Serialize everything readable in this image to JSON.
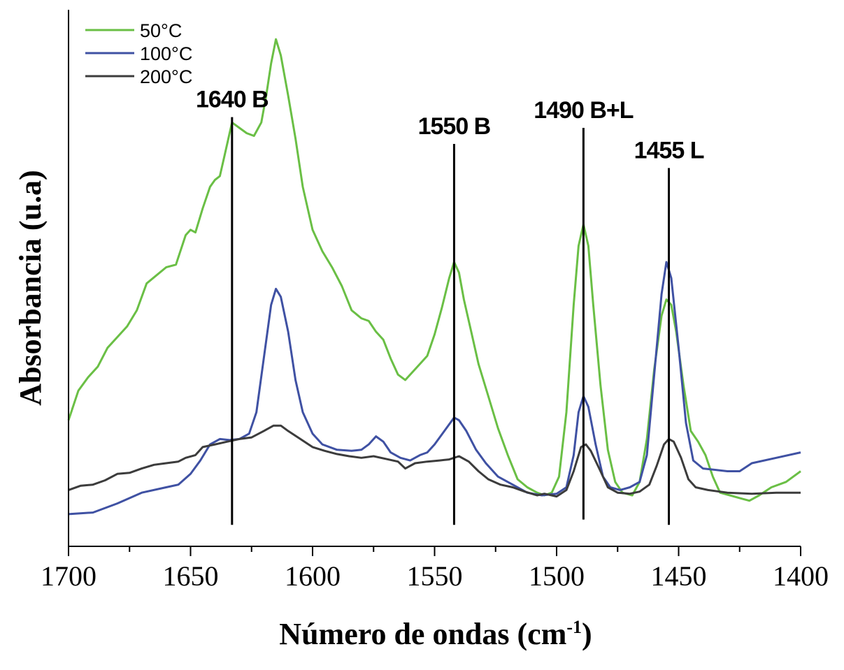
{
  "chart_data": {
    "type": "line",
    "xlabel": "Número de ondas (cm",
    "xlabel_sup": "-1",
    "xlabel_end": ")",
    "ylabel": "Absorbancia (u.a)",
    "xlim": [
      1700,
      1400
    ],
    "ylim": [
      0,
      1
    ],
    "x_ticks": [
      1700,
      1650,
      1600,
      1550,
      1500,
      1450,
      1400
    ],
    "x_tick_labels": [
      "1700",
      "1650",
      "1600",
      "1550",
      "1500",
      "1450",
      "1400"
    ],
    "y_ticks_shown": false,
    "grid": false,
    "legend_position": "top-left",
    "series": [
      {
        "name": "50°C",
        "color": "#6abf45",
        "points": [
          [
            1700,
            0.235
          ],
          [
            1696,
            0.29
          ],
          [
            1692,
            0.315
          ],
          [
            1688,
            0.335
          ],
          [
            1684,
            0.37
          ],
          [
            1680,
            0.39
          ],
          [
            1676,
            0.41
          ],
          [
            1672,
            0.44
          ],
          [
            1668,
            0.49
          ],
          [
            1664,
            0.505
          ],
          [
            1660,
            0.52
          ],
          [
            1656,
            0.525
          ],
          [
            1652,
            0.58
          ],
          [
            1650,
            0.59
          ],
          [
            1648,
            0.585
          ],
          [
            1645,
            0.63
          ],
          [
            1642,
            0.67
          ],
          [
            1640,
            0.683
          ],
          [
            1638,
            0.69
          ],
          [
            1636,
            0.73
          ],
          [
            1633,
            0.79
          ],
          [
            1630,
            0.78
          ],
          [
            1627,
            0.77
          ],
          [
            1624,
            0.765
          ],
          [
            1621,
            0.79
          ],
          [
            1619,
            0.84
          ],
          [
            1617,
            0.9
          ],
          [
            1615,
            0.945
          ],
          [
            1613,
            0.915
          ],
          [
            1610,
            0.84
          ],
          [
            1607,
            0.76
          ],
          [
            1604,
            0.67
          ],
          [
            1600,
            0.59
          ],
          [
            1596,
            0.55
          ],
          [
            1592,
            0.52
          ],
          [
            1588,
            0.485
          ],
          [
            1584,
            0.44
          ],
          [
            1580,
            0.425
          ],
          [
            1577,
            0.42
          ],
          [
            1574,
            0.4
          ],
          [
            1571,
            0.385
          ],
          [
            1568,
            0.35
          ],
          [
            1565,
            0.32
          ],
          [
            1562,
            0.31
          ],
          [
            1559,
            0.325
          ],
          [
            1556,
            0.34
          ],
          [
            1553,
            0.355
          ],
          [
            1550,
            0.395
          ],
          [
            1547,
            0.445
          ],
          [
            1544,
            0.5
          ],
          [
            1542,
            0.53
          ],
          [
            1540,
            0.51
          ],
          [
            1538,
            0.46
          ],
          [
            1535,
            0.4
          ],
          [
            1532,
            0.34
          ],
          [
            1528,
            0.28
          ],
          [
            1524,
            0.22
          ],
          [
            1520,
            0.17
          ],
          [
            1516,
            0.125
          ],
          [
            1512,
            0.11
          ],
          [
            1508,
            0.1
          ],
          [
            1505,
            0.095
          ],
          [
            1502,
            0.1
          ],
          [
            1499,
            0.13
          ],
          [
            1496,
            0.25
          ],
          [
            1493,
            0.45
          ],
          [
            1491,
            0.56
          ],
          [
            1489,
            0.6
          ],
          [
            1487,
            0.56
          ],
          [
            1485,
            0.45
          ],
          [
            1482,
            0.3
          ],
          [
            1479,
            0.18
          ],
          [
            1476,
            0.12
          ],
          [
            1473,
            0.1
          ],
          [
            1469,
            0.095
          ],
          [
            1466,
            0.12
          ],
          [
            1463,
            0.2
          ],
          [
            1460,
            0.33
          ],
          [
            1457,
            0.43
          ],
          [
            1455,
            0.46
          ],
          [
            1453,
            0.45
          ],
          [
            1451,
            0.4
          ],
          [
            1448,
            0.3
          ],
          [
            1445,
            0.215
          ],
          [
            1442,
            0.195
          ],
          [
            1439,
            0.17
          ],
          [
            1436,
            0.13
          ],
          [
            1433,
            0.1
          ],
          [
            1429,
            0.095
          ],
          [
            1425,
            0.09
          ],
          [
            1421,
            0.085
          ],
          [
            1417,
            0.095
          ],
          [
            1412,
            0.11
          ],
          [
            1406,
            0.12
          ],
          [
            1400,
            0.14
          ]
        ]
      },
      {
        "name": "100°C",
        "color": "#3f51a3",
        "points": [
          [
            1700,
            0.06
          ],
          [
            1690,
            0.063
          ],
          [
            1680,
            0.08
          ],
          [
            1670,
            0.1
          ],
          [
            1660,
            0.11
          ],
          [
            1655,
            0.115
          ],
          [
            1650,
            0.135
          ],
          [
            1646,
            0.16
          ],
          [
            1642,
            0.19
          ],
          [
            1638,
            0.2
          ],
          [
            1634,
            0.198
          ],
          [
            1630,
            0.2
          ],
          [
            1626,
            0.21
          ],
          [
            1623,
            0.25
          ],
          [
            1620,
            0.35
          ],
          [
            1617,
            0.45
          ],
          [
            1615,
            0.48
          ],
          [
            1613,
            0.465
          ],
          [
            1610,
            0.4
          ],
          [
            1607,
            0.31
          ],
          [
            1604,
            0.25
          ],
          [
            1600,
            0.21
          ],
          [
            1596,
            0.19
          ],
          [
            1590,
            0.18
          ],
          [
            1584,
            0.178
          ],
          [
            1580,
            0.18
          ],
          [
            1577,
            0.19
          ],
          [
            1574,
            0.205
          ],
          [
            1571,
            0.195
          ],
          [
            1568,
            0.175
          ],
          [
            1564,
            0.165
          ],
          [
            1560,
            0.16
          ],
          [
            1556,
            0.17
          ],
          [
            1553,
            0.175
          ],
          [
            1550,
            0.19
          ],
          [
            1546,
            0.215
          ],
          [
            1542,
            0.24
          ],
          [
            1540,
            0.235
          ],
          [
            1537,
            0.215
          ],
          [
            1533,
            0.18
          ],
          [
            1529,
            0.155
          ],
          [
            1524,
            0.13
          ],
          [
            1518,
            0.115
          ],
          [
            1512,
            0.1
          ],
          [
            1506,
            0.095
          ],
          [
            1500,
            0.098
          ],
          [
            1496,
            0.11
          ],
          [
            1493,
            0.17
          ],
          [
            1491,
            0.25
          ],
          [
            1489,
            0.28
          ],
          [
            1487,
            0.26
          ],
          [
            1484,
            0.19
          ],
          [
            1481,
            0.13
          ],
          [
            1478,
            0.11
          ],
          [
            1474,
            0.105
          ],
          [
            1470,
            0.11
          ],
          [
            1466,
            0.12
          ],
          [
            1463,
            0.17
          ],
          [
            1460,
            0.32
          ],
          [
            1457,
            0.47
          ],
          [
            1455,
            0.53
          ],
          [
            1453,
            0.5
          ],
          [
            1450,
            0.37
          ],
          [
            1447,
            0.23
          ],
          [
            1444,
            0.16
          ],
          [
            1440,
            0.145
          ],
          [
            1430,
            0.14
          ],
          [
            1425,
            0.14
          ],
          [
            1420,
            0.155
          ],
          [
            1410,
            0.165
          ],
          [
            1400,
            0.175
          ]
        ]
      },
      {
        "name": "200°C",
        "color": "#3c3c3c",
        "points": [
          [
            1700,
            0.105
          ],
          [
            1695,
            0.113
          ],
          [
            1690,
            0.115
          ],
          [
            1685,
            0.123
          ],
          [
            1680,
            0.135
          ],
          [
            1675,
            0.137
          ],
          [
            1670,
            0.145
          ],
          [
            1665,
            0.152
          ],
          [
            1660,
            0.155
          ],
          [
            1655,
            0.158
          ],
          [
            1652,
            0.165
          ],
          [
            1648,
            0.17
          ],
          [
            1645,
            0.185
          ],
          [
            1640,
            0.19
          ],
          [
            1635,
            0.195
          ],
          [
            1630,
            0.2
          ],
          [
            1625,
            0.203
          ],
          [
            1620,
            0.215
          ],
          [
            1616,
            0.225
          ],
          [
            1613,
            0.225
          ],
          [
            1610,
            0.215
          ],
          [
            1605,
            0.2
          ],
          [
            1600,
            0.185
          ],
          [
            1595,
            0.178
          ],
          [
            1590,
            0.172
          ],
          [
            1585,
            0.168
          ],
          [
            1580,
            0.165
          ],
          [
            1575,
            0.168
          ],
          [
            1570,
            0.163
          ],
          [
            1565,
            0.158
          ],
          [
            1562,
            0.145
          ],
          [
            1558,
            0.155
          ],
          [
            1553,
            0.158
          ],
          [
            1548,
            0.16
          ],
          [
            1544,
            0.162
          ],
          [
            1540,
            0.168
          ],
          [
            1536,
            0.158
          ],
          [
            1532,
            0.14
          ],
          [
            1528,
            0.125
          ],
          [
            1523,
            0.115
          ],
          [
            1518,
            0.11
          ],
          [
            1513,
            0.102
          ],
          [
            1508,
            0.095
          ],
          [
            1505,
            0.098
          ],
          [
            1500,
            0.093
          ],
          [
            1496,
            0.105
          ],
          [
            1493,
            0.14
          ],
          [
            1490,
            0.185
          ],
          [
            1488,
            0.19
          ],
          [
            1486,
            0.178
          ],
          [
            1482,
            0.14
          ],
          [
            1479,
            0.11
          ],
          [
            1475,
            0.1
          ],
          [
            1470,
            0.098
          ],
          [
            1466,
            0.102
          ],
          [
            1462,
            0.115
          ],
          [
            1459,
            0.15
          ],
          [
            1456,
            0.19
          ],
          [
            1454,
            0.2
          ],
          [
            1452,
            0.195
          ],
          [
            1449,
            0.165
          ],
          [
            1446,
            0.125
          ],
          [
            1443,
            0.11
          ],
          [
            1438,
            0.105
          ],
          [
            1430,
            0.1
          ],
          [
            1420,
            0.098
          ],
          [
            1410,
            0.1
          ],
          [
            1400,
            0.1
          ]
        ]
      }
    ],
    "annotations": [
      {
        "x": 1633,
        "label": "1640 B",
        "line_top": 0.8,
        "line_bottom": 0.04
      },
      {
        "x": 1542,
        "label": "1550 B",
        "line_top": 0.75,
        "line_bottom": 0.04
      },
      {
        "x": 1489,
        "label": "1490 B+L",
        "line_top": 0.78,
        "line_bottom": 0.05
      },
      {
        "x": 1454,
        "label": "1455 L",
        "line_top": 0.705,
        "line_bottom": 0.04
      }
    ]
  }
}
